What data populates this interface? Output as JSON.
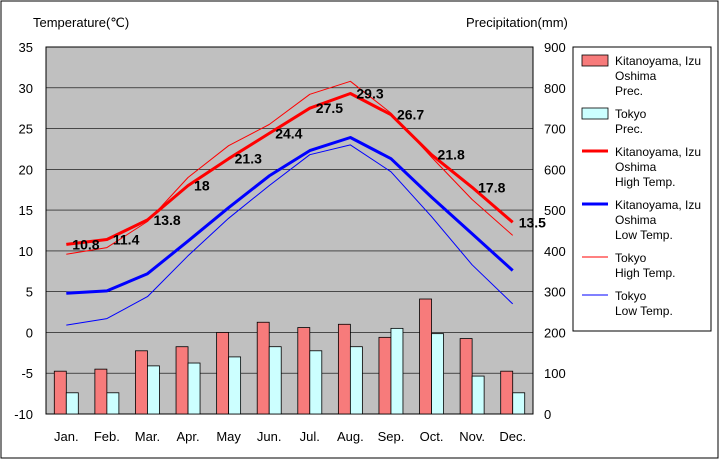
{
  "chart_data": {
    "type": "bar+line",
    "left_axis_title": "Temperature(℃)",
    "right_axis_title": "Precipitation(mm)",
    "categories": [
      "Jan.",
      "Feb.",
      "Mar.",
      "Apr.",
      "May",
      "Jun.",
      "Jul.",
      "Aug.",
      "Sep.",
      "Oct.",
      "Nov.",
      "Dec."
    ],
    "y_left": {
      "min": -10,
      "max": 35,
      "ticks": [
        35,
        30,
        25,
        20,
        15,
        10,
        5,
        0,
        -5,
        -10
      ]
    },
    "y_right": {
      "min": 0,
      "max": 900,
      "ticks": [
        900,
        800,
        700,
        600,
        500,
        400,
        300,
        200,
        100,
        0
      ]
    },
    "precipitation_series": [
      {
        "legend_lines": [
          "Kitanoyama, Izu",
          "Oshima",
          "Prec."
        ],
        "color": "#f77b7b",
        "values": [
          105,
          110,
          155,
          165,
          200,
          225,
          212,
          220,
          188,
          282,
          185,
          105
        ]
      },
      {
        "legend_lines": [
          "Tokyo",
          "Prec."
        ],
        "color": "#ccffff",
        "values": [
          52,
          52,
          118,
          125,
          140,
          165,
          155,
          165,
          210,
          197,
          93,
          52
        ]
      }
    ],
    "temperature_series": [
      {
        "legend_lines": [
          "Kitanoyama, Izu",
          "Oshima",
          "High Temp."
        ],
        "color": "#ff0000",
        "width": 3,
        "values": [
          10.8,
          11.4,
          13.8,
          18,
          21.3,
          24.4,
          27.5,
          29.3,
          26.7,
          21.8,
          17.8,
          13.5
        ],
        "labels": [
          "10.8",
          "11.4",
          "13.8",
          "18",
          "21.3",
          "24.4",
          "27.5",
          "29.3",
          "26.7",
          "21.8",
          "17.8",
          "13.5"
        ]
      },
      {
        "legend_lines": [
          "Kitanoyama, Izu",
          "Oshima",
          "Low Temp."
        ],
        "color": "#0000ff",
        "width": 3,
        "values": [
          4.8,
          5.1,
          7.2,
          11.2,
          15.3,
          19.2,
          22.3,
          23.9,
          21.3,
          16.6,
          12.1,
          7.6
        ]
      },
      {
        "legend_lines": [
          "Tokyo",
          "High Temp."
        ],
        "color": "#ff0000",
        "width": 1,
        "values": [
          9.6,
          10.4,
          13.6,
          19.0,
          22.9,
          25.5,
          29.2,
          30.8,
          26.9,
          21.5,
          16.3,
          11.9
        ]
      },
      {
        "legend_lines": [
          "Tokyo",
          "Low Temp."
        ],
        "color": "#0000ff",
        "width": 1,
        "values": [
          0.9,
          1.7,
          4.4,
          9.4,
          14.0,
          18.0,
          21.8,
          23.0,
          19.7,
          14.2,
          8.3,
          3.5
        ]
      }
    ]
  }
}
